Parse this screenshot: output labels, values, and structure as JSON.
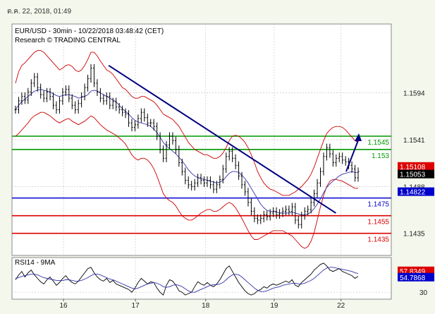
{
  "timestamp": "ต.ค. 22, 2018, 01:49",
  "colors": {
    "background": "#f4f7ec",
    "panel": "#ffffff",
    "support_blue": "#0000cc",
    "green": "#009900",
    "red": "#dd0000",
    "trend": "#000080",
    "bollinger": "#cc0000",
    "ma": "#3333aa",
    "price": "#000000"
  },
  "chart_data": [
    {
      "type": "line",
      "title": "EUR/USD - 30min - 10/22/2018 03:48:42 (CET)",
      "subtitle": "Research © TRADING CENTRAL",
      "y_ticks": [
        "1.1594",
        "1.1541",
        "1.1488",
        "1.1435"
      ],
      "x_ticks": [
        "16",
        "17",
        "18",
        "19",
        "22"
      ],
      "ylim": [
        1.141,
        1.1672
      ],
      "grid": true,
      "price_series": [
        1.1575,
        1.1585,
        1.159,
        1.1586,
        1.1595,
        1.1605,
        1.1612,
        1.16,
        1.1592,
        1.1588,
        1.1595,
        1.159,
        1.158,
        1.1575,
        1.1585,
        1.1595,
        1.1598,
        1.1588,
        1.158,
        1.1575,
        1.1582,
        1.159,
        1.16,
        1.161,
        1.1622,
        1.1605,
        1.1595,
        1.1588,
        1.1585,
        1.159,
        1.158,
        1.1584,
        1.1578,
        1.1575,
        1.1572,
        1.157,
        1.156,
        1.1555,
        1.1558,
        1.1565,
        1.1572,
        1.1566,
        1.156,
        1.156,
        1.1556,
        1.1545,
        1.153,
        1.152,
        1.1535,
        1.1545,
        1.154,
        1.153,
        1.1515,
        1.1505,
        1.1495,
        1.149,
        1.1488,
        1.1492,
        1.1498,
        1.1495,
        1.1492,
        1.1495,
        1.149,
        1.1485,
        1.149,
        1.1496,
        1.1508,
        1.1522,
        1.1528,
        1.152,
        1.1512,
        1.15,
        1.149,
        1.1482,
        1.147,
        1.146,
        1.1452,
        1.145,
        1.1452,
        1.1456,
        1.1454,
        1.1458,
        1.146,
        1.1456,
        1.1458,
        1.146,
        1.1462,
        1.146,
        1.1465,
        1.145,
        1.1445,
        1.1455,
        1.146,
        1.1462,
        1.147,
        1.148,
        1.1492,
        1.1505,
        1.1522,
        1.1532,
        1.1525,
        1.1515,
        1.152,
        1.1522,
        1.1518,
        1.1516,
        1.1512,
        1.1508,
        1.1498,
        1.1505
      ],
      "bollinger_upper": [
        1.1605,
        1.1618,
        1.1625,
        1.1628,
        1.1632,
        1.1636,
        1.164,
        1.1642,
        1.1642,
        1.164,
        1.1636,
        1.1632,
        1.1628,
        1.1624,
        1.162,
        1.1622,
        1.1625,
        1.1626,
        1.1624,
        1.162,
        1.1618,
        1.162,
        1.1625,
        1.1632,
        1.164,
        1.164,
        1.1636,
        1.163,
        1.1625,
        1.162,
        1.1618,
        1.1615,
        1.161,
        1.1605,
        1.16,
        1.1598,
        1.1594,
        1.159,
        1.1588,
        1.1588,
        1.159,
        1.159,
        1.1588,
        1.1586,
        1.1584,
        1.158,
        1.1575,
        1.157,
        1.1568,
        1.1566,
        1.1564,
        1.156,
        1.1556,
        1.155,
        1.1544,
        1.1538,
        1.1534,
        1.153,
        1.1528,
        1.1526,
        1.1524,
        1.1524,
        1.1522,
        1.152,
        1.152,
        1.1522,
        1.1526,
        1.1532,
        1.154,
        1.1545,
        1.1546,
        1.1545,
        1.1542,
        1.1538,
        1.1532,
        1.1524,
        1.1515,
        1.1505,
        1.1498,
        1.1492,
        1.1488,
        1.1485,
        1.1484,
        1.1482,
        1.148,
        1.1478,
        1.1478,
        1.1478,
        1.148,
        1.1482,
        1.1485,
        1.1488,
        1.1492,
        1.1496,
        1.1502,
        1.151,
        1.152,
        1.153,
        1.154,
        1.1548,
        1.1552,
        1.1555,
        1.1556,
        1.1556,
        1.1555,
        1.1552,
        1.1548,
        1.1544,
        1.154,
        1.1538
      ],
      "bollinger_lower": [
        1.1545,
        1.1548,
        1.1552,
        1.1556,
        1.156,
        1.1565,
        1.1568,
        1.157,
        1.1572,
        1.1572,
        1.157,
        1.1568,
        1.1565,
        1.1562,
        1.156,
        1.1562,
        1.1564,
        1.1565,
        1.1562,
        1.156,
        1.1558,
        1.156,
        1.1562,
        1.1565,
        1.1568,
        1.1566,
        1.1562,
        1.1558,
        1.1555,
        1.1552,
        1.155,
        1.1548,
        1.1546,
        1.1543,
        1.154,
        1.1536,
        1.153,
        1.1524,
        1.152,
        1.1518,
        1.152,
        1.152,
        1.1518,
        1.1514,
        1.1508,
        1.15,
        1.149,
        1.148,
        1.1475,
        1.1472,
        1.147,
        1.1466,
        1.146,
        1.1455,
        1.1452,
        1.145,
        1.145,
        1.1452,
        1.1455,
        1.1458,
        1.146,
        1.1462,
        1.1462,
        1.146,
        1.146,
        1.1462,
        1.1465,
        1.1468,
        1.147,
        1.1468,
        1.1464,
        1.1458,
        1.1452,
        1.1445,
        1.1438,
        1.1432,
        1.1428,
        1.1428,
        1.143,
        1.1432,
        1.1434,
        1.1436,
        1.1438,
        1.1438,
        1.1438,
        1.1438,
        1.1436,
        1.1434,
        1.1432,
        1.1428,
        1.1424,
        1.142,
        1.1418,
        1.142,
        1.1426,
        1.1436,
        1.145,
        1.1465,
        1.1478,
        1.1488,
        1.1494,
        1.1496,
        1.1496,
        1.1495,
        1.1494,
        1.1492,
        1.149,
        1.1488,
        1.1486,
        1.1486
      ],
      "moving_average": [
        1.1575,
        1.158,
        1.1584,
        1.1587,
        1.159,
        1.1593,
        1.1596,
        1.1597,
        1.1598,
        1.1597,
        1.1596,
        1.1595,
        1.1593,
        1.1591,
        1.159,
        1.1591,
        1.1592,
        1.1592,
        1.1591,
        1.159,
        1.1588,
        1.1589,
        1.159,
        1.1592,
        1.1596,
        1.1597,
        1.1596,
        1.1594,
        1.1592,
        1.159,
        1.1588,
        1.1586,
        1.1584,
        1.158,
        1.1576,
        1.1573,
        1.157,
        1.1566,
        1.1563,
        1.1561,
        1.156,
        1.1559,
        1.1558,
        1.1556,
        1.1553,
        1.1549,
        1.1544,
        1.1538,
        1.1534,
        1.1531,
        1.1528,
        1.1525,
        1.1521,
        1.1517,
        1.1512,
        1.1507,
        1.1503,
        1.15,
        1.1498,
        1.1497,
        1.1496,
        1.1495,
        1.1494,
        1.1493,
        1.1492,
        1.1493,
        1.1495,
        1.1499,
        1.1503,
        1.1505,
        1.1505,
        1.1504,
        1.1501,
        1.1497,
        1.1492,
        1.1486,
        1.148,
        1.1474,
        1.1468,
        1.1464,
        1.1461,
        1.146,
        1.146,
        1.1459,
        1.1458,
        1.1458,
        1.1458,
        1.1458,
        1.1459,
        1.1458,
        1.1457,
        1.1456,
        1.1456,
        1.1457,
        1.1459,
        1.1463,
        1.1468,
        1.1474,
        1.1481,
        1.1487,
        1.1491,
        1.1494,
        1.1497,
        1.15,
        1.1502,
        1.1503,
        1.1504,
        1.1505,
        1.1504,
        1.1504
      ],
      "trend_line": {
        "from": [
          0.272,
          1.1625
        ],
        "to": [
          0.935,
          1.1458
        ]
      },
      "projection_arrow": [
        [
          0.965,
          1.1505
        ],
        [
          1.0,
          1.1545
        ]
      ],
      "levels": [
        {
          "value": 1.1545,
          "label": "1.1545",
          "color": "green"
        },
        {
          "value": 1.153,
          "label": "1.153",
          "color": "green"
        },
        {
          "value": 1.1475,
          "label": "1.1475",
          "color": "blue"
        },
        {
          "value": 1.1455,
          "label": "1.1455",
          "color": "red"
        },
        {
          "value": 1.1435,
          "label": "1.1435",
          "color": "red"
        }
      ],
      "price_tags": [
        {
          "value": 1.15108,
          "label": "1.15108",
          "style": "red"
        },
        {
          "value": 1.15053,
          "label": "1.15053",
          "style": "black"
        },
        {
          "value": 1.14822,
          "label": "1.14822",
          "style": "blue"
        }
      ]
    },
    {
      "type": "line",
      "title": "RSI14 - 9MA",
      "ylim": [
        20,
        80
      ],
      "y_ticks": [
        "30"
      ],
      "rsi": [
        48,
        55,
        60,
        52,
        58,
        62,
        55,
        50,
        45,
        42,
        48,
        52,
        46,
        40,
        44,
        50,
        54,
        48,
        44,
        42,
        46,
        52,
        58,
        64,
        66,
        58,
        52,
        48,
        46,
        50,
        44,
        47,
        42,
        40,
        38,
        36,
        34,
        30,
        36,
        44,
        50,
        46,
        42,
        45,
        44,
        36,
        30,
        26,
        40,
        48,
        46,
        40,
        32,
        30,
        26,
        28,
        30,
        38,
        45,
        42,
        40,
        44,
        40,
        38,
        42,
        48,
        56,
        64,
        68,
        60,
        52,
        44,
        38,
        32,
        28,
        26,
        28,
        32,
        34,
        38,
        36,
        40,
        42,
        40,
        42,
        44,
        46,
        44,
        48,
        40,
        38,
        44,
        48,
        52,
        56,
        62,
        66,
        70,
        72,
        68,
        62,
        60,
        62,
        64,
        60,
        58,
        56,
        54,
        50,
        53
      ],
      "rsi_ma": [
        50,
        51,
        53,
        54,
        55,
        56,
        56,
        55,
        53,
        51,
        50,
        49,
        48,
        47,
        47,
        47,
        48,
        48,
        47,
        46,
        46,
        47,
        49,
        51,
        54,
        56,
        56,
        55,
        53,
        51,
        49,
        48,
        46,
        44,
        42,
        40,
        38,
        36,
        35,
        36,
        38,
        40,
        42,
        43,
        44,
        43,
        41,
        38,
        37,
        38,
        40,
        41,
        40,
        38,
        35,
        32,
        30,
        30,
        32,
        34,
        36,
        38,
        40,
        41,
        41,
        42,
        44,
        48,
        52,
        55,
        56,
        55,
        52,
        48,
        44,
        40,
        36,
        33,
        31,
        31,
        32,
        34,
        36,
        37,
        38,
        40,
        41,
        42,
        43,
        43,
        42,
        42,
        43,
        45,
        47,
        50,
        54,
        58,
        62,
        65,
        66,
        66,
        65,
        64,
        63,
        62,
        61,
        60,
        58,
        57
      ],
      "value_tags": [
        {
          "value": 57.8349,
          "label": "57.8349",
          "style": "red"
        },
        {
          "value": 54.7868,
          "label": "54.7868",
          "style": "blue"
        }
      ]
    }
  ]
}
